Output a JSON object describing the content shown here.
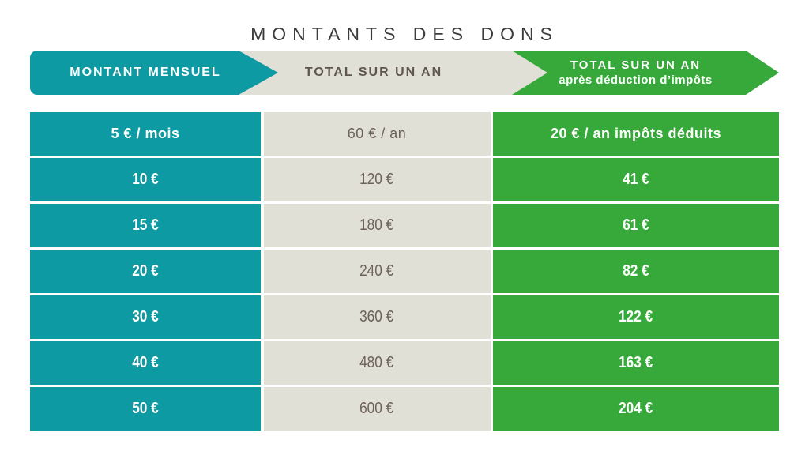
{
  "title": "MONTANTS DES DONS",
  "colors": {
    "teal": "#0e9aa3",
    "green": "#37a83a",
    "light_gray": "#e0e0d7",
    "gray_text": "#6e6157",
    "header_gray_text": "#5f554f",
    "title_text": "#3c3b3d",
    "background": "#ffffff"
  },
  "header": {
    "col1": "MONTANT MENSUEL",
    "col2": "TOTAL SUR UN AN",
    "col3_line1": "TOTAL SUR UN AN",
    "col3_line2": "après déduction d’impôts"
  },
  "chart_data": {
    "type": "table",
    "title": "MONTANTS DES DONS",
    "columns": [
      "MONTANT MENSUEL",
      "TOTAL SUR UN AN",
      "TOTAL SUR UN AN après déduction d’impôts"
    ],
    "rows": [
      [
        "5 € / mois",
        "60 € / an",
        "20 € / an impôts déduits"
      ],
      [
        "10 €",
        "120 €",
        "41 €"
      ],
      [
        "15 €",
        "180 €",
        "61 €"
      ],
      [
        "20 €",
        "240 €",
        "82 €"
      ],
      [
        "30 €",
        "360 €",
        "122 €"
      ],
      [
        "40 €",
        "480 €",
        "163 €"
      ],
      [
        "50 €",
        "600 €",
        "204 €"
      ]
    ],
    "monthly_values_eur": [
      5,
      10,
      15,
      20,
      30,
      40,
      50
    ],
    "yearly_values_eur": [
      60,
      120,
      180,
      240,
      360,
      480,
      600
    ],
    "yearly_after_tax_deduction_eur": [
      20,
      41,
      61,
      82,
      122,
      163,
      204
    ]
  }
}
